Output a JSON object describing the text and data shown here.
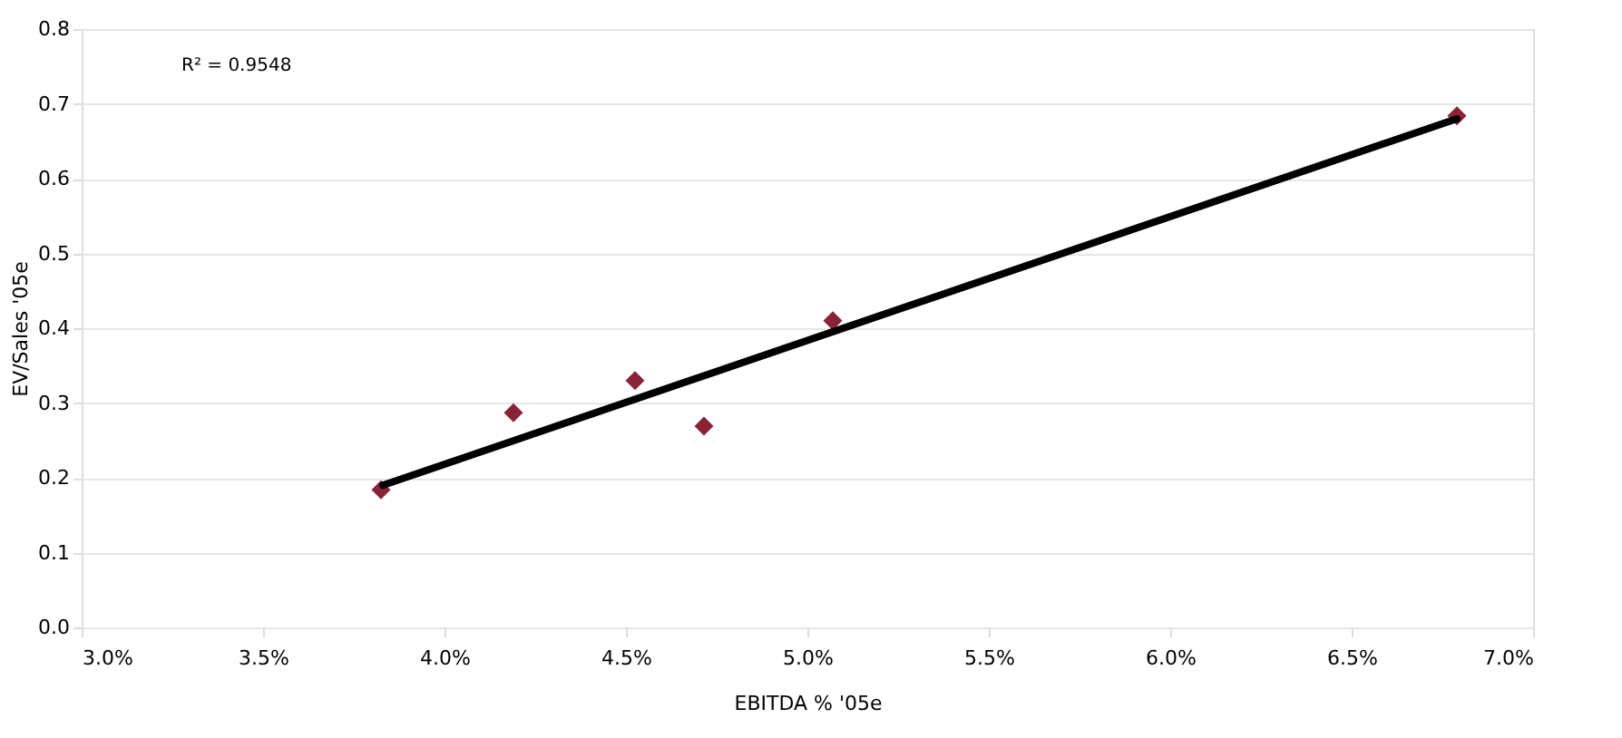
{
  "chart_data": {
    "type": "scatter",
    "xlabel": "EBITDA % '05e",
    "ylabel": "EV/Sales '05e",
    "annotations": [
      "R² = 0.9548"
    ],
    "series": [
      {
        "color": "#8b2338",
        "marker": "diamond",
        "x": [
          3.825,
          4.19,
          4.525,
          4.715,
          5.07,
          6.79
        ],
        "values": [
          0.184,
          0.287,
          0.33,
          0.269,
          0.41,
          0.684
        ]
      },
      {
        "type": "line",
        "color": "#000000",
        "line_style": "solid",
        "x": [
          3.83,
          6.79
        ],
        "values": [
          0.19,
          0.68
        ]
      }
    ],
    "xlim": [
      3.0,
      7.0
    ],
    "xticks": [
      {
        "value": 3.0,
        "label": "3.0%"
      },
      {
        "value": 3.5,
        "label": "3.5%"
      },
      {
        "value": 4.0,
        "label": "4.0%"
      },
      {
        "value": 4.5,
        "label": "4.5%"
      },
      {
        "value": 5.0,
        "label": "5.0%"
      },
      {
        "value": 5.5,
        "label": "5.5%"
      },
      {
        "value": 6.0,
        "label": "6.0%"
      },
      {
        "value": 6.5,
        "label": "6.5%"
      },
      {
        "value": 7.0,
        "label": "7.0%"
      }
    ],
    "ylim": [
      0.0,
      0.8
    ],
    "yticks": [
      {
        "value": 0,
        "label": "0.0"
      },
      0.1,
      0.2,
      0.3,
      0.4,
      0.5,
      0.6,
      0.7,
      0.8
    ],
    "grid": "y"
  }
}
